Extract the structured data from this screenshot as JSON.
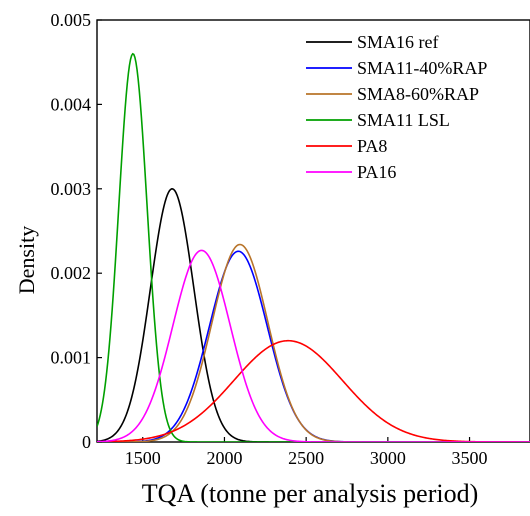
{
  "chart_data": {
    "type": "line",
    "xlabel": "TQA (tonne per analysis period)",
    "ylabel": "Density",
    "xlim": [
      1220,
      3870
    ],
    "ylim": [
      0,
      0.005
    ],
    "xticks": [
      "1500",
      "2000",
      "2500",
      "3000",
      "3500"
    ],
    "yticks": [
      "0",
      "0.001",
      "0.002",
      "0.003",
      "0.004",
      "0.005"
    ],
    "grid": false,
    "legend_position": "top-right",
    "series": [
      {
        "name": "SMA16 ref",
        "color": "#000000",
        "distribution": "normal",
        "mean": 1680,
        "sd": 133,
        "peak": 0.003
      },
      {
        "name": "SMA11-40%RAP",
        "color": "#0000ff",
        "distribution": "normal",
        "mean": 2085,
        "sd": 177,
        "peak": 0.00226
      },
      {
        "name": "SMA8-60%RAP",
        "color": "#b8742a",
        "distribution": "normal",
        "mean": 2095,
        "sd": 171,
        "peak": 0.00234
      },
      {
        "name": "SMA11 LSL",
        "color": "#00a000",
        "distribution": "normal",
        "mean": 1440,
        "sd": 86.7,
        "peak": 0.0046
      },
      {
        "name": "PA8",
        "color": "#ff0000",
        "distribution": "normal",
        "mean": 2390,
        "sd": 333,
        "peak": 0.0012
      },
      {
        "name": "PA16",
        "color": "#ff00ff",
        "distribution": "normal",
        "mean": 1860,
        "sd": 176,
        "peak": 0.00227
      }
    ]
  }
}
